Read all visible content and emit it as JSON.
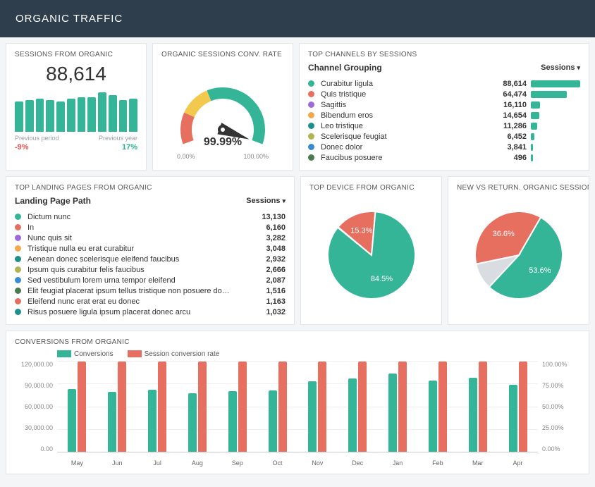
{
  "colors": {
    "teal": "#35b597",
    "red": "#e76f5f",
    "purple": "#9c6ade",
    "orange": "#f2a94b",
    "olive": "#b0b552",
    "blue": "#3a8ccf",
    "darkgreen": "#4a7a4f",
    "darkteal": "#1f8f8a",
    "yellow": "#f2c94c",
    "grey": "#9aa0a6",
    "bg": "#ffffff",
    "gridline": "#eeeeee"
  },
  "header": {
    "title": "ORGANIC TRAFFIC"
  },
  "sessions_card": {
    "title": "SESSIONS FROM ORGANIC",
    "value": "88,614",
    "bars": [
      38,
      40,
      42,
      40,
      38,
      42,
      44,
      44,
      50,
      46,
      40,
      42
    ],
    "bar_color": "#35b597",
    "prev_period_label": "Previous period",
    "prev_year_label": "Previous year",
    "delta_period": "-9%",
    "delta_year": "17%"
  },
  "gauge_card": {
    "title": "ORGANIC SESSIONS CONV. RATE",
    "value_pct": 99.99,
    "value_label": "99.99%",
    "min_label": "0.00%",
    "max_label": "100.00%",
    "arc_colors": {
      "low": "#e76f5f",
      "mid": "#f2c94c",
      "high": "#35b597"
    },
    "needle_color": "#333333"
  },
  "channels_card": {
    "title": "TOP CHANNELS BY SESSIONS",
    "group_label": "Channel Grouping",
    "sort_label": "Sessions",
    "max": 88614,
    "rows": [
      {
        "color": "#35b597",
        "label": "Curabitur ligula",
        "value": 88614,
        "value_str": "88,614"
      },
      {
        "color": "#e76f5f",
        "label": "Quis tristique",
        "value": 64474,
        "value_str": "64,474"
      },
      {
        "color": "#9c6ade",
        "label": "Sagittis",
        "value": 16110,
        "value_str": "16,110"
      },
      {
        "color": "#f2a94b",
        "label": "Bibendum eros",
        "value": 14654,
        "value_str": "14,654"
      },
      {
        "color": "#1f8f8a",
        "label": "Leo tristique",
        "value": 11286,
        "value_str": "11,286"
      },
      {
        "color": "#b0b552",
        "label": "Scelerisque feugiat",
        "value": 6452,
        "value_str": "6,452"
      },
      {
        "color": "#3a8ccf",
        "label": "Donec dolor",
        "value": 3841,
        "value_str": "3,841"
      },
      {
        "color": "#4a7a4f",
        "label": "Faucibus posuere",
        "value": 496,
        "value_str": "496"
      }
    ]
  },
  "landing_card": {
    "title": "TOP LANDING PAGES FROM ORGANIC",
    "group_label": "Landing Page Path",
    "sort_label": "Sessions",
    "rows": [
      {
        "color": "#35b597",
        "label": "Dictum nunc",
        "value_str": "13,130"
      },
      {
        "color": "#e76f5f",
        "label": "In",
        "value_str": "6,160"
      },
      {
        "color": "#9c6ade",
        "label": "Nunc quis sit",
        "value_str": "3,282"
      },
      {
        "color": "#f2a94b",
        "label": "Tristique nulla eu erat curabitur",
        "value_str": "3,048"
      },
      {
        "color": "#1f8f8a",
        "label": "Aenean donec scelerisque eleifend faucibus",
        "value_str": "2,932"
      },
      {
        "color": "#b0b552",
        "label": "Ipsum quis curabitur felis faucibus",
        "value_str": "2,666"
      },
      {
        "color": "#3a8ccf",
        "label": "Sed vestibulum lorem urna tempor eleifend",
        "value_str": "2,087"
      },
      {
        "color": "#4a7a4f",
        "label": "Elit feugiat placerat ipsum tellus tristique non posuere do…",
        "value_str": "1,516"
      },
      {
        "color": "#e76f5f",
        "label": "Eleifend nunc erat erat eu donec",
        "value_str": "1,163"
      },
      {
        "color": "#1f8f8a",
        "label": "Risus posuere ligula ipsum placerat donec arcu",
        "value_str": "1,032"
      }
    ]
  },
  "device_card": {
    "title": "TOP DEVICE FROM ORGANIC",
    "slices": [
      {
        "color": "#35b597",
        "pct": 84.5,
        "label": "84.5%"
      },
      {
        "color": "#e76f5f",
        "pct": 15.3,
        "label": "15.3%"
      }
    ]
  },
  "newreturn_card": {
    "title": "NEW VS RETURN. ORGANIC SESSIONS",
    "slices": [
      {
        "color": "#35b597",
        "pct": 53.6,
        "label": "53.6%"
      },
      {
        "color": "#e76f5f",
        "pct": 36.6,
        "label": "36.6%"
      }
    ]
  },
  "conversions_card": {
    "title": "CONVERSIONS FROM ORGANIC",
    "legend": {
      "a": "Conversions",
      "b": "Session conversion rate"
    },
    "y_left": {
      "max": 120000,
      "ticks": [
        "120,000.00",
        "90,000.00",
        "60,000.00",
        "30,000.00",
        "0.00"
      ]
    },
    "y_right": {
      "max": 100,
      "ticks": [
        "100.00%",
        "75.00%",
        "50.00%",
        "25.00%",
        "0.00%"
      ]
    },
    "months": [
      "May",
      "Jun",
      "Jul",
      "Aug",
      "Sep",
      "Oct",
      "Nov",
      "Dec",
      "Jan",
      "Feb",
      "Mar",
      "Apr"
    ],
    "conversions": [
      83000,
      79000,
      82000,
      77000,
      80000,
      81000,
      93000,
      97000,
      103000,
      94000,
      98000,
      88000
    ],
    "conv_rate_pct": [
      99,
      99,
      99,
      99,
      99,
      99,
      99,
      99,
      99,
      99,
      99,
      99
    ],
    "bar_a_color": "#35b597",
    "bar_b_color": "#e76f5f"
  }
}
